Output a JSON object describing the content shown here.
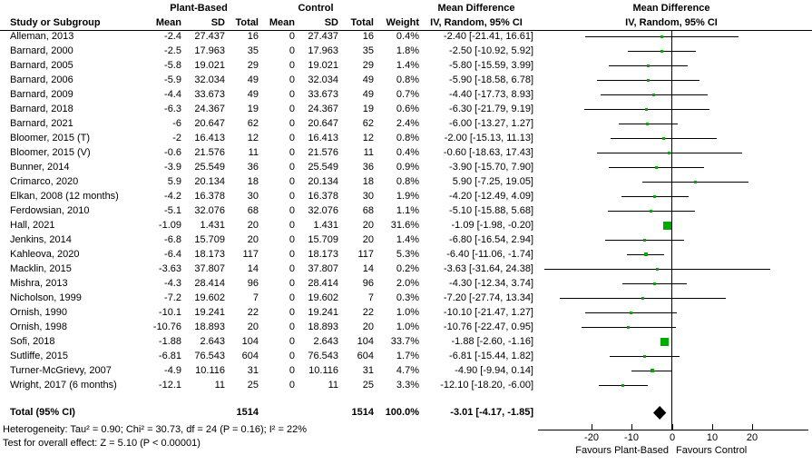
{
  "header": {
    "group1": "Plant-Based",
    "group2": "Control",
    "study_col": "Study or Subgroup",
    "mean": "Mean",
    "sd": "SD",
    "total": "Total",
    "weight": "Weight",
    "md_title": "Mean Difference",
    "md_subtitle": "IV, Random, 95% CI"
  },
  "colors": {
    "square": "#00ab00",
    "diamond": "#000000",
    "line": "#000000"
  },
  "chart_data": {
    "type": "forest",
    "effect_measure": "Mean Difference",
    "model": "IV, Random, 95% CI",
    "axis": {
      "ticks": [
        -20,
        -10,
        0,
        10,
        20
      ],
      "xmin": -33,
      "xmax": 34,
      "favours_left": "Favours Plant-Based",
      "favours_right": "Favours Control"
    },
    "studies": [
      {
        "name": "Alleman, 2013",
        "pb_mean": "-2.4",
        "pb_sd": "27.437",
        "pb_total": "16",
        "c_mean": "0",
        "c_sd": "27.437",
        "c_total": "16",
        "weight": "0.4%",
        "ci_text": "-2.40 [-21.41, 16.61]",
        "est": -2.4,
        "lo": -21.41,
        "hi": 16.61,
        "w": 0.4
      },
      {
        "name": "Barnard, 2000",
        "pb_mean": "-2.5",
        "pb_sd": "17.963",
        "pb_total": "35",
        "c_mean": "0",
        "c_sd": "17.963",
        "c_total": "35",
        "weight": "1.8%",
        "ci_text": "-2.50 [-10.92, 5.92]",
        "est": -2.5,
        "lo": -10.92,
        "hi": 5.92,
        "w": 1.8
      },
      {
        "name": "Barnard, 2005",
        "pb_mean": "-5.8",
        "pb_sd": "19.021",
        "pb_total": "29",
        "c_mean": "0",
        "c_sd": "19.021",
        "c_total": "29",
        "weight": "1.4%",
        "ci_text": "-5.80 [-15.59, 3.99]",
        "est": -5.8,
        "lo": -15.59,
        "hi": 3.99,
        "w": 1.4
      },
      {
        "name": "Barnard, 2006",
        "pb_mean": "-5.9",
        "pb_sd": "32.034",
        "pb_total": "49",
        "c_mean": "0",
        "c_sd": "32.034",
        "c_total": "49",
        "weight": "0.8%",
        "ci_text": "-5.90 [-18.58, 6.78]",
        "est": -5.9,
        "lo": -18.58,
        "hi": 6.78,
        "w": 0.8
      },
      {
        "name": "Barnard, 2009",
        "pb_mean": "-4.4",
        "pb_sd": "33.673",
        "pb_total": "49",
        "c_mean": "0",
        "c_sd": "33.673",
        "c_total": "49",
        "weight": "0.7%",
        "ci_text": "-4.40 [-17.73, 8.93]",
        "est": -4.4,
        "lo": -17.73,
        "hi": 8.93,
        "w": 0.7
      },
      {
        "name": "Barnard, 2018",
        "pb_mean": "-6.3",
        "pb_sd": "24.367",
        "pb_total": "19",
        "c_mean": "0",
        "c_sd": "24.367",
        "c_total": "19",
        "weight": "0.6%",
        "ci_text": "-6.30 [-21.79, 9.19]",
        "est": -6.3,
        "lo": -21.79,
        "hi": 9.19,
        "w": 0.6
      },
      {
        "name": "Barnard, 2021",
        "pb_mean": "-6",
        "pb_sd": "20.647",
        "pb_total": "62",
        "c_mean": "0",
        "c_sd": "20.647",
        "c_total": "62",
        "weight": "2.4%",
        "ci_text": "-6.00 [-13.27, 1.27]",
        "est": -6.0,
        "lo": -13.27,
        "hi": 1.27,
        "w": 2.4
      },
      {
        "name": "Bloomer, 2015 (T)",
        "pb_mean": "-2",
        "pb_sd": "16.413",
        "pb_total": "12",
        "c_mean": "0",
        "c_sd": "16.413",
        "c_total": "12",
        "weight": "0.8%",
        "ci_text": "-2.00 [-15.13, 11.13]",
        "est": -2.0,
        "lo": -15.13,
        "hi": 11.13,
        "w": 0.8
      },
      {
        "name": "Bloomer, 2015 (V)",
        "pb_mean": "-0.6",
        "pb_sd": "21.576",
        "pb_total": "11",
        "c_mean": "0",
        "c_sd": "21.576",
        "c_total": "11",
        "weight": "0.4%",
        "ci_text": "-0.60 [-18.63, 17.43]",
        "est": -0.6,
        "lo": -18.63,
        "hi": 17.43,
        "w": 0.4
      },
      {
        "name": "Bunner, 2014",
        "pb_mean": "-3.9",
        "pb_sd": "25.549",
        "pb_total": "36",
        "c_mean": "0",
        "c_sd": "25.549",
        "c_total": "36",
        "weight": "0.9%",
        "ci_text": "-3.90 [-15.70, 7.90]",
        "est": -3.9,
        "lo": -15.7,
        "hi": 7.9,
        "w": 0.9
      },
      {
        "name": "Crimarco, 2020",
        "pb_mean": "5.9",
        "pb_sd": "20.134",
        "pb_total": "18",
        "c_mean": "0",
        "c_sd": "20.134",
        "c_total": "18",
        "weight": "0.8%",
        "ci_text": "5.90 [-7.25, 19.05]",
        "est": 5.9,
        "lo": -7.25,
        "hi": 19.05,
        "w": 0.8
      },
      {
        "name": "Elkan, 2008 (12 months)",
        "pb_mean": "-4.2",
        "pb_sd": "16.378",
        "pb_total": "30",
        "c_mean": "0",
        "c_sd": "16.378",
        "c_total": "30",
        "weight": "1.9%",
        "ci_text": "-4.20 [-12.49, 4.09]",
        "est": -4.2,
        "lo": -12.49,
        "hi": 4.09,
        "w": 1.9
      },
      {
        "name": "Ferdowsian, 2010",
        "pb_mean": "-5.1",
        "pb_sd": "32.076",
        "pb_total": "68",
        "c_mean": "0",
        "c_sd": "32.076",
        "c_total": "68",
        "weight": "1.1%",
        "ci_text": "-5.10 [-15.88, 5.68]",
        "est": -5.1,
        "lo": -15.88,
        "hi": 5.68,
        "w": 1.1
      },
      {
        "name": "Hall, 2021",
        "pb_mean": "-1.09",
        "pb_sd": "1.431",
        "pb_total": "20",
        "c_mean": "0",
        "c_sd": "1.431",
        "c_total": "20",
        "weight": "31.6%",
        "ci_text": "-1.09 [-1.98, -0.20]",
        "est": -1.09,
        "lo": -1.98,
        "hi": -0.2,
        "w": 31.6
      },
      {
        "name": "Jenkins, 2014",
        "pb_mean": "-6.8",
        "pb_sd": "15.709",
        "pb_total": "20",
        "c_mean": "0",
        "c_sd": "15.709",
        "c_total": "20",
        "weight": "1.4%",
        "ci_text": "-6.80 [-16.54, 2.94]",
        "est": -6.8,
        "lo": -16.54,
        "hi": 2.94,
        "w": 1.4
      },
      {
        "name": "Kahleova, 2020",
        "pb_mean": "-6.4",
        "pb_sd": "18.173",
        "pb_total": "117",
        "c_mean": "0",
        "c_sd": "18.173",
        "c_total": "117",
        "weight": "5.3%",
        "ci_text": "-6.40 [-11.06, -1.74]",
        "est": -6.4,
        "lo": -11.06,
        "hi": -1.74,
        "w": 5.3
      },
      {
        "name": "Macklin, 2015",
        "pb_mean": "-3.63",
        "pb_sd": "37.807",
        "pb_total": "14",
        "c_mean": "0",
        "c_sd": "37.807",
        "c_total": "14",
        "weight": "0.2%",
        "ci_text": "-3.63 [-31.64, 24.38]",
        "est": -3.63,
        "lo": -31.64,
        "hi": 24.38,
        "w": 0.2
      },
      {
        "name": "Mishra, 2013",
        "pb_mean": "-4.3",
        "pb_sd": "28.414",
        "pb_total": "96",
        "c_mean": "0",
        "c_sd": "28.414",
        "c_total": "96",
        "weight": "2.0%",
        "ci_text": "-4.30 [-12.34, 3.74]",
        "est": -4.3,
        "lo": -12.34,
        "hi": 3.74,
        "w": 2.0
      },
      {
        "name": "Nicholson, 1999",
        "pb_mean": "-7.2",
        "pb_sd": "19.602",
        "pb_total": "7",
        "c_mean": "0",
        "c_sd": "19.602",
        "c_total": "7",
        "weight": "0.3%",
        "ci_text": "-7.20 [-27.74, 13.34]",
        "est": -7.2,
        "lo": -27.74,
        "hi": 13.34,
        "w": 0.3
      },
      {
        "name": "Ornish, 1990",
        "pb_mean": "-10.1",
        "pb_sd": "19.241",
        "pb_total": "22",
        "c_mean": "0",
        "c_sd": "19.241",
        "c_total": "22",
        "weight": "1.0%",
        "ci_text": "-10.10 [-21.47, 1.27]",
        "est": -10.1,
        "lo": -21.47,
        "hi": 1.27,
        "w": 1.0
      },
      {
        "name": "Ornish, 1998",
        "pb_mean": "-10.76",
        "pb_sd": "18.893",
        "pb_total": "20",
        "c_mean": "0",
        "c_sd": "18.893",
        "c_total": "20",
        "weight": "1.0%",
        "ci_text": "-10.76 [-22.47, 0.95]",
        "est": -10.76,
        "lo": -22.47,
        "hi": 0.95,
        "w": 1.0
      },
      {
        "name": "Sofi, 2018",
        "pb_mean": "-1.88",
        "pb_sd": "2.643",
        "pb_total": "104",
        "c_mean": "0",
        "c_sd": "2.643",
        "c_total": "104",
        "weight": "33.7%",
        "ci_text": "-1.88 [-2.60, -1.16]",
        "est": -1.88,
        "lo": -2.6,
        "hi": -1.16,
        "w": 33.7
      },
      {
        "name": "Sutliffe, 2015",
        "pb_mean": "-6.81",
        "pb_sd": "76.543",
        "pb_total": "604",
        "c_mean": "0",
        "c_sd": "76.543",
        "c_total": "604",
        "weight": "1.7%",
        "ci_text": "-6.81 [-15.44, 1.82]",
        "est": -6.81,
        "lo": -15.44,
        "hi": 1.82,
        "w": 1.7
      },
      {
        "name": "Turner-McGrievy, 2007",
        "pb_mean": "-4.9",
        "pb_sd": "10.116",
        "pb_total": "31",
        "c_mean": "0",
        "c_sd": "10.116",
        "c_total": "31",
        "weight": "4.7%",
        "ci_text": "-4.90 [-9.94, 0.14]",
        "est": -4.9,
        "lo": -9.94,
        "hi": 0.14,
        "w": 4.7
      },
      {
        "name": "Wright, 2017 (6 months)",
        "pb_mean": "-12.1",
        "pb_sd": "11",
        "pb_total": "25",
        "c_mean": "0",
        "c_sd": "11",
        "c_total": "25",
        "weight": "3.3%",
        "ci_text": "-12.10 [-18.20, -6.00]",
        "est": -12.1,
        "lo": -18.2,
        "hi": -6.0,
        "w": 3.3
      }
    ],
    "total": {
      "label": "Total (95% CI)",
      "pb_total": "1514",
      "c_total": "1514",
      "weight": "100.0%",
      "ci_text": "-3.01 [-4.17, -1.85]",
      "est": -3.01,
      "lo": -4.17,
      "hi": -1.85
    },
    "heterogeneity": "Heterogeneity: Tau² = 0.90; Chi² = 30.73, df = 24 (P = 0.16); I² = 22%",
    "overall_effect": "Test for overall effect: Z = 5.10 (P < 0.00001)"
  }
}
